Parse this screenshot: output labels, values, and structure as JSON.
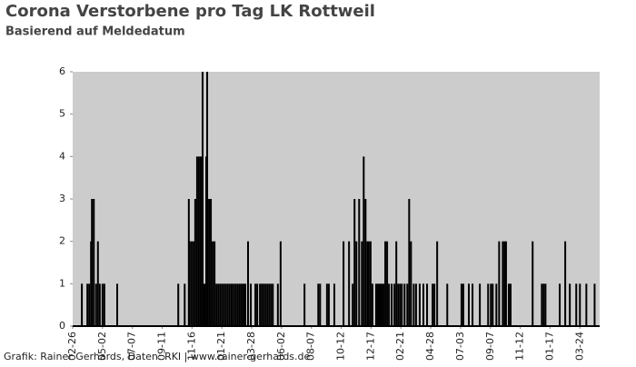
{
  "chart_data": {
    "type": "bar",
    "title": "Corona Verstorbene pro Tag LK Rottweil",
    "subtitle": "Basierend auf Meldedatum",
    "footer": "Grafik: Rainer Gerhards, Daten: RKI | www.rainer-gerhards.de",
    "color": "#000000",
    "background": "#cccccc",
    "x": [
      20,
      32,
      36,
      40,
      42,
      46,
      51,
      55,
      59,
      65,
      69,
      97,
      230,
      244,
      253,
      255,
      259,
      263,
      267,
      271,
      275,
      279,
      283,
      287,
      291,
      293,
      297,
      301,
      305,
      309,
      313,
      317,
      321,
      325,
      329,
      333,
      337,
      341,
      345,
      348,
      352,
      356,
      360,
      364,
      368,
      372,
      376,
      382,
      388,
      398,
      402,
      408,
      412,
      416,
      420,
      424,
      428,
      432,
      436,
      447,
      453,
      505,
      535,
      539,
      554,
      558,
      570,
      590,
      602,
      610,
      614,
      618,
      624,
      630,
      634,
      638,
      642,
      645,
      649,
      653,
      661,
      665,
      669,
      673,
      677,
      681,
      685,
      689,
      695,
      701,
      705,
      709,
      713,
      717,
      723,
      729,
      733,
      737,
      743,
      748,
      756,
      764,
      772,
      784,
      788,
      794,
      816,
      847,
      851,
      863,
      871,
      887,
      905,
      911,
      915,
      923,
      929,
      937,
      941,
      944,
      950,
      954,
      1002,
      1022,
      1026,
      1030,
      1061,
      1073,
      1083,
      1097,
      1105,
      1119,
      1137
    ],
    "values": [
      1,
      1,
      1,
      2,
      3,
      3,
      1,
      2,
      1,
      1,
      1,
      1,
      1,
      1,
      3,
      2,
      2,
      2,
      3,
      4,
      4,
      4,
      6,
      1,
      4,
      6,
      3,
      3,
      2,
      2,
      1,
      1,
      1,
      1,
      1,
      1,
      1,
      1,
      1,
      1,
      1,
      1,
      1,
      1,
      1,
      1,
      1,
      2,
      1,
      1,
      1,
      1,
      1,
      1,
      1,
      1,
      1,
      1,
      1,
      1,
      2,
      1,
      1,
      1,
      1,
      1,
      1,
      2,
      2,
      1,
      3,
      2,
      3,
      2,
      4,
      3,
      2,
      2,
      2,
      1,
      1,
      1,
      1,
      1,
      1,
      2,
      2,
      1,
      1,
      1,
      2,
      1,
      1,
      1,
      1,
      1,
      3,
      2,
      1,
      1,
      1,
      1,
      1,
      1,
      1,
      2,
      1,
      1,
      1,
      1,
      1,
      1,
      1,
      1,
      1,
      1,
      2,
      2,
      2,
      2,
      1,
      1,
      2,
      1,
      1,
      1,
      1,
      2,
      1,
      1,
      1,
      1,
      1
    ],
    "xlim": [
      0,
      1148
    ],
    "xticks": [
      {
        "value": 0,
        "label": "02-26"
      },
      {
        "value": 65,
        "label": "05-02"
      },
      {
        "value": 130,
        "label": "07-07"
      },
      {
        "value": 195,
        "label": "09-11"
      },
      {
        "value": 260,
        "label": "11-16"
      },
      {
        "value": 325,
        "label": "01-21"
      },
      {
        "value": 390,
        "label": "03-28"
      },
      {
        "value": 455,
        "label": "06-02"
      },
      {
        "value": 520,
        "label": "08-07"
      },
      {
        "value": 585,
        "label": "10-12"
      },
      {
        "value": 650,
        "label": "12-17"
      },
      {
        "value": 715,
        "label": "02-21"
      },
      {
        "value": 780,
        "label": "04-28"
      },
      {
        "value": 845,
        "label": "07-03"
      },
      {
        "value": 910,
        "label": "09-07"
      },
      {
        "value": 975,
        "label": "11-12"
      },
      {
        "value": 1040,
        "label": "01-17"
      },
      {
        "value": 1105,
        "label": "03-24"
      }
    ],
    "ylim": [
      0,
      6
    ],
    "yticks": [
      0,
      1,
      2,
      3,
      4,
      5,
      6
    ]
  }
}
